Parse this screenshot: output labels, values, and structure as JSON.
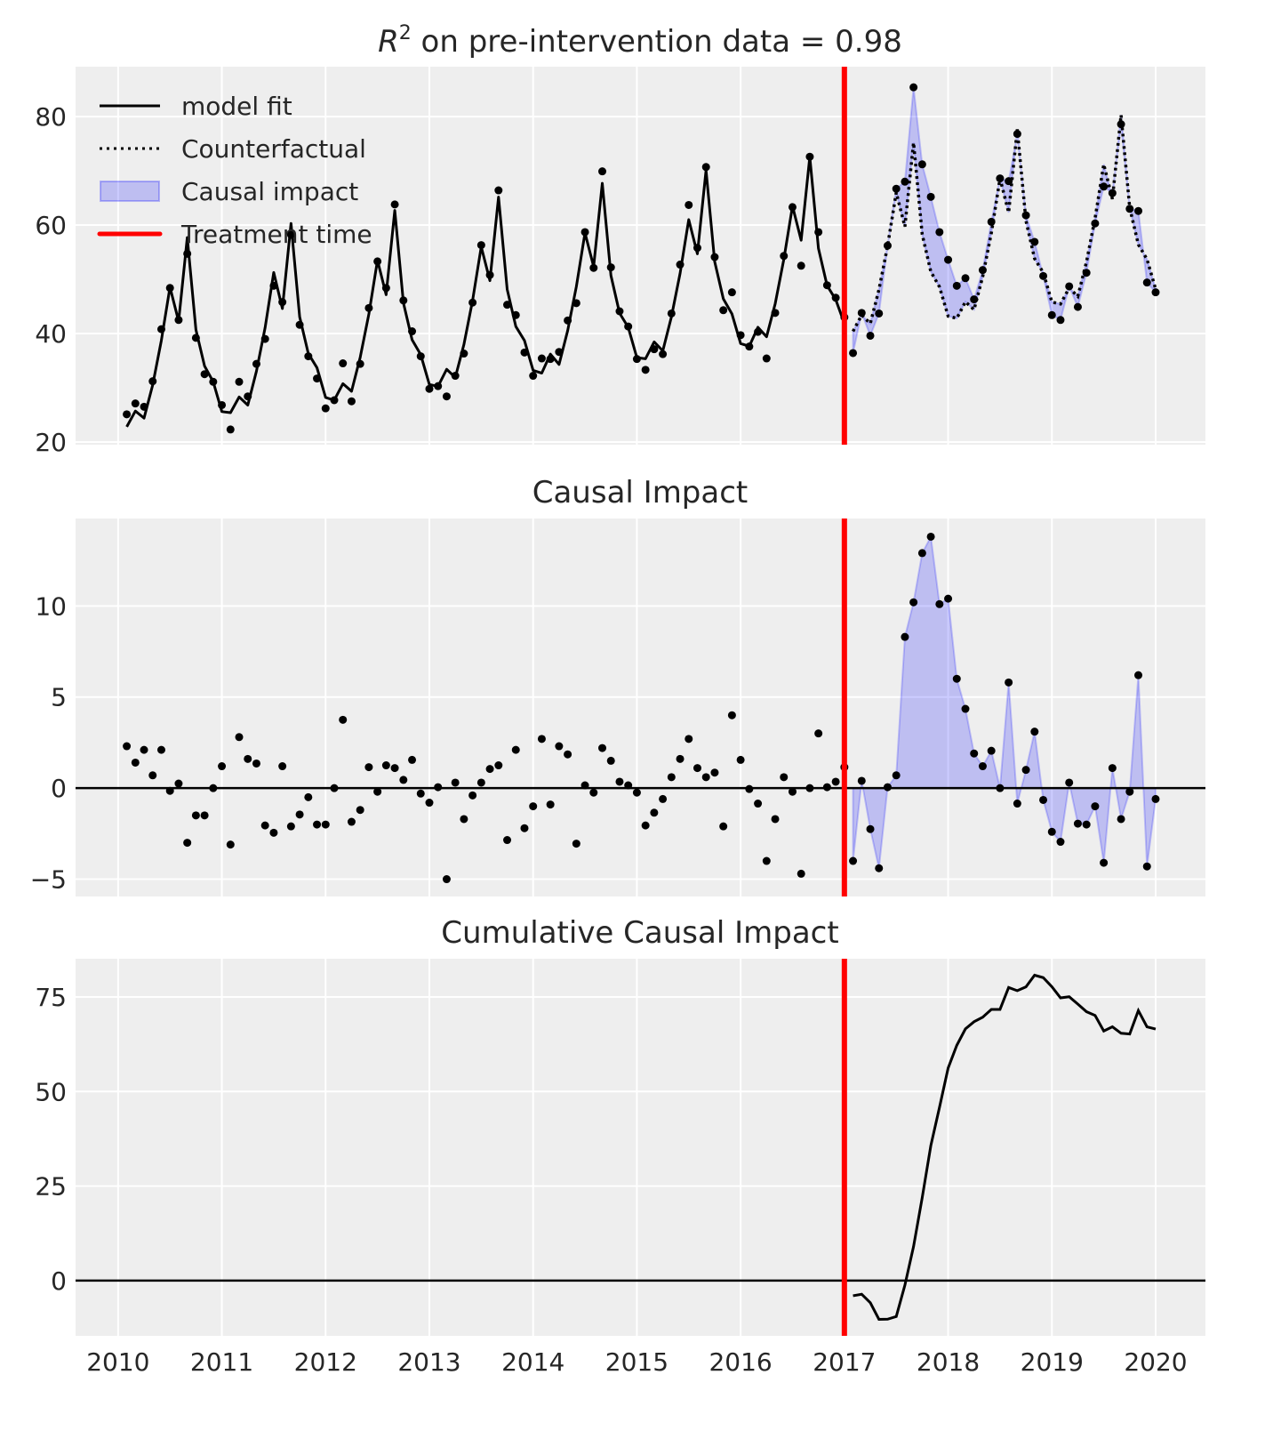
{
  "chart_data": [
    {
      "type": "line",
      "title": {
        "symbol": "R",
        "exponent": "2",
        "rest": " on pre-intervention data = 0.98"
      },
      "ylim": [
        19.5,
        89.2
      ],
      "yticks": [
        20,
        40,
        60,
        80
      ],
      "grid": true,
      "legend": {
        "placement": "top-left",
        "items": [
          {
            "label": "model fit",
            "style": "solid-black"
          },
          {
            "label": "Counterfactual",
            "style": "dotted-black"
          },
          {
            "label": "Causal impact",
            "style": "blue-fill"
          },
          {
            "label": "Treatment time",
            "style": "red-line"
          }
        ]
      },
      "x_start": "2010-01",
      "frequency": "monthly",
      "treatment_time": 2017,
      "observed": [
        25.1,
        27.1,
        26.5,
        31.2,
        40.8,
        48.4,
        42.5,
        54.7,
        39.2,
        32.5,
        31.1,
        26.8,
        22.3,
        31.1,
        28.4,
        34.4,
        39.0,
        48.8,
        45.8,
        58.2,
        41.6,
        35.8,
        31.7,
        26.2,
        27.7,
        34.5,
        27.5,
        34.4,
        44.7,
        53.3,
        48.4,
        63.8,
        46.1,
        40.4,
        35.8,
        29.8,
        30.3,
        28.4,
        32.2,
        36.3,
        45.7,
        56.3,
        50.8,
        66.4,
        45.3,
        43.4,
        36.5,
        32.2,
        35.4,
        35.3,
        36.6,
        42.4,
        45.6,
        58.7,
        52.1,
        69.9,
        52.2,
        44.1,
        41.3,
        35.3,
        33.3,
        37.1,
        36.2,
        43.7,
        52.7,
        63.7,
        55.8,
        70.7,
        54.1,
        44.3,
        47.6,
        39.7,
        37.6,
        40.3,
        35.4,
        43.8,
        54.3,
        63.3,
        52.5,
        72.6,
        58.7,
        48.9,
        46.6,
        43.0,
        36.4,
        43.8,
        39.6,
        43.7,
        56.2,
        66.7,
        68.0,
        85.4,
        71.2,
        65.2,
        58.7,
        53.6,
        48.8,
        50.2,
        46.3,
        51.7,
        60.6,
        68.6,
        68.1,
        76.8,
        61.8,
        56.9,
        50.6,
        43.4,
        42.5,
        48.7,
        44.9,
        51.2,
        60.3,
        67.1,
        65.9,
        78.6,
        63.0,
        62.6,
        49.4,
        47.6
      ]
    },
    {
      "type": "scatter",
      "title": "Causal Impact",
      "ylim": [
        -5.95,
        14.8
      ],
      "yticks": [
        -5,
        0,
        5,
        10
      ],
      "grid": true,
      "impact": [
        2.3,
        1.4,
        2.1,
        0.7,
        2.1,
        -0.15,
        0.25,
        -3.0,
        -1.5,
        -1.5,
        0,
        1.2,
        -3.1,
        2.8,
        1.6,
        1.35,
        -2.05,
        -2.45,
        1.2,
        -2.1,
        -1.45,
        -0.5,
        -2.0,
        -2.0,
        0,
        3.75,
        -1.85,
        -1.2,
        1.15,
        -0.2,
        1.25,
        1.1,
        0.45,
        1.55,
        -0.3,
        -0.8,
        0.05,
        -5.0,
        0.3,
        -1.7,
        -0.4,
        0.3,
        1.05,
        1.25,
        -2.85,
        2.1,
        -2.2,
        -1.0,
        2.7,
        -0.9,
        2.3,
        1.85,
        -3.05,
        0.15,
        -0.25,
        2.2,
        1.5,
        0.35,
        0.15,
        -0.25,
        -2.05,
        -1.35,
        -0.6,
        0.6,
        1.6,
        2.7,
        1.1,
        0.6,
        0.85,
        -2.1,
        4.0,
        1.55,
        -0.05,
        -0.85,
        -4.0,
        -1.7,
        0.6,
        -0.2,
        -4.7,
        0,
        3.0,
        0.05,
        0.35,
        1.15,
        -4.0,
        0.4,
        -2.25,
        -4.4,
        0.05,
        0.7,
        8.3,
        10.2,
        12.9,
        13.8,
        10.1,
        10.4,
        6.0,
        4.35,
        1.9,
        1.2,
        2.05,
        0,
        5.8,
        -0.85,
        1.0,
        3.1,
        -0.65,
        -2.4,
        -2.95,
        0.3,
        -1.95,
        -2.0,
        -1.0,
        -4.1,
        1.1,
        -1.7,
        -0.2,
        6.2,
        -4.3,
        -0.6
      ]
    },
    {
      "type": "line",
      "title": "Cumulative Causal Impact",
      "ylim": [
        -14.6,
        85.1
      ],
      "yticks": [
        0,
        25,
        50,
        75
      ],
      "grid": true,
      "cumulative": [
        -4.0,
        -3.6,
        -5.85,
        -10.25,
        -10.2,
        -9.5,
        -1.2,
        9.0,
        21.9,
        35.7,
        45.8,
        56.2,
        62.2,
        66.55,
        68.45,
        69.65,
        71.7,
        71.7,
        77.5,
        76.65,
        77.65,
        80.75,
        80.1,
        77.7,
        74.75,
        75.05,
        73.1,
        71.1,
        70.1,
        66.0,
        67.1,
        65.4,
        65.2,
        71.4,
        67.1,
        66.5
      ],
      "xticks": [
        "2010",
        "2011",
        "2012",
        "2013",
        "2014",
        "2015",
        "2016",
        "2017",
        "2018",
        "2019",
        "2020"
      ],
      "xlim": [
        2009.59,
        2020.48
      ]
    }
  ],
  "colors": {
    "axes_bg": "#eeeeee",
    "grid": "#ffffff",
    "treatment": "#ff0000",
    "impact_fill": "#0000ff",
    "line": "#000000"
  }
}
